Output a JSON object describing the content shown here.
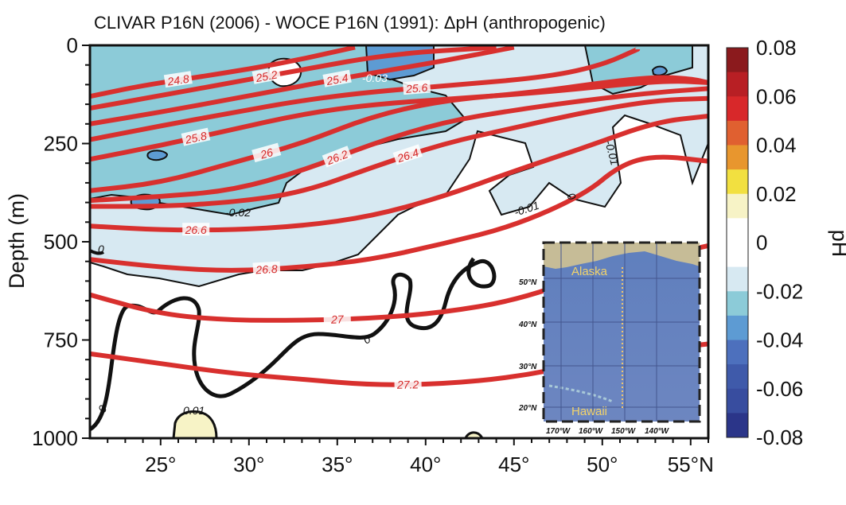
{
  "chart_data": {
    "type": "contour",
    "title": "CLIVAR P16N (2006) - WOCE P16N (1991): ΔpH (anthropogenic)",
    "xlabel": "",
    "ylabel": "Depth (m)",
    "xlim": [
      21,
      56
    ],
    "ylim": [
      0,
      1000
    ],
    "y_inverted": true,
    "x_ticks": [
      {
        "value": 25,
        "label": "25°"
      },
      {
        "value": 30,
        "label": "30°"
      },
      {
        "value": 35,
        "label": "35°"
      },
      {
        "value": 40,
        "label": "40°"
      },
      {
        "value": 45,
        "label": "45°"
      },
      {
        "value": 50,
        "label": "50°"
      },
      {
        "value": 55,
        "label": "55°N"
      }
    ],
    "y_ticks": [
      {
        "value": 0,
        "label": "0"
      },
      {
        "value": 250,
        "label": "250"
      },
      {
        "value": 500,
        "label": "500"
      },
      {
        "value": 750,
        "label": "750"
      },
      {
        "value": 1000,
        "label": "1000"
      }
    ],
    "colorbar": {
      "label": "pH",
      "tick_labels": [
        "0.08",
        "0.06",
        "0.04",
        "0.02",
        "0",
        "-0.02",
        "-0.04",
        "-0.06",
        "-0.08"
      ],
      "colors": [
        "#8b1a1d",
        "#b81f24",
        "#d8282a",
        "#e06030",
        "#e8962e",
        "#f2e040",
        "#f7f3c6",
        "#ffffff",
        "#ffffff",
        "#d7e9f2",
        "#8ccbd8",
        "#5d9bd3",
        "#4d70bd",
        "#3f5aaa",
        "#384d9f",
        "#2b3589"
      ]
    },
    "dph_contour_labels": [
      "-0.03",
      "-0.02",
      "-0.01",
      "-0.01",
      "0",
      "0",
      "0",
      "0",
      "0.01"
    ],
    "isopycnals": [
      {
        "label": "24.8",
        "points": [
          [
            21,
            130
          ],
          [
            24,
            102
          ],
          [
            28,
            75
          ],
          [
            32,
            45
          ],
          [
            36,
            5
          ]
        ]
      },
      {
        "label": "25.2",
        "points": [
          [
            21,
            160
          ],
          [
            25,
            128
          ],
          [
            29,
            95
          ],
          [
            33,
            62
          ],
          [
            38,
            22
          ],
          [
            44,
            5
          ]
        ]
      },
      {
        "label": "25.4",
        "points": [
          [
            21,
            200
          ],
          [
            25,
            170
          ],
          [
            29,
            137
          ],
          [
            33,
            103
          ],
          [
            37,
            70
          ],
          [
            41,
            40
          ],
          [
            45,
            5
          ]
        ]
      },
      {
        "label": "25.6",
        "points": [
          [
            21,
            240
          ],
          [
            25,
            205
          ],
          [
            29,
            172
          ],
          [
            33,
            140
          ],
          [
            37,
            118
          ],
          [
            42,
            100
          ],
          [
            47,
            80
          ],
          [
            50,
            50
          ],
          [
            52,
            10
          ]
        ]
      },
      {
        "label": "25.8",
        "points": [
          [
            21,
            290
          ],
          [
            25,
            255
          ],
          [
            29,
            215
          ],
          [
            33,
            175
          ],
          [
            37,
            150
          ],
          [
            42,
            135
          ],
          [
            47,
            118
          ],
          [
            51,
            100
          ],
          [
            54,
            90
          ],
          [
            56,
            95
          ]
        ]
      },
      {
        "label": "26",
        "points": [
          [
            21,
            370
          ],
          [
            25,
            350
          ],
          [
            29,
            300
          ],
          [
            33,
            250
          ],
          [
            37,
            180
          ],
          [
            41,
            140
          ],
          [
            46,
            120
          ],
          [
            50,
            95
          ],
          [
            53,
            80
          ],
          [
            55,
            85
          ],
          [
            56,
            95
          ]
        ]
      },
      {
        "label": "26.2",
        "points": [
          [
            21,
            395
          ],
          [
            25,
            385
          ],
          [
            29,
            370
          ],
          [
            33,
            320
          ],
          [
            37,
            250
          ],
          [
            41,
            195
          ],
          [
            45,
            165
          ],
          [
            49,
            140
          ],
          [
            53,
            120
          ],
          [
            56,
            110
          ]
        ]
      },
      {
        "label": "26.4",
        "points": [
          [
            21,
            410
          ],
          [
            25,
            410
          ],
          [
            29,
            400
          ],
          [
            33,
            375
          ],
          [
            37,
            310
          ],
          [
            41,
            250
          ],
          [
            45,
            210
          ],
          [
            49,
            170
          ],
          [
            53,
            140
          ],
          [
            56,
            135
          ]
        ]
      },
      {
        "label": "26.6",
        "points": [
          [
            21,
            460
          ],
          [
            25,
            470
          ],
          [
            29,
            470
          ],
          [
            33,
            460
          ],
          [
            37,
            435
          ],
          [
            41,
            385
          ],
          [
            45,
            320
          ],
          [
            49,
            260
          ],
          [
            53,
            195
          ],
          [
            56,
            180
          ]
        ]
      },
      {
        "label": "26.8",
        "points": [
          [
            21,
            545
          ],
          [
            25,
            565
          ],
          [
            29,
            575
          ],
          [
            33,
            565
          ],
          [
            37,
            545
          ],
          [
            41,
            505
          ],
          [
            45,
            460
          ],
          [
            49,
            380
          ],
          [
            51,
            305
          ],
          [
            53,
            280
          ],
          [
            56,
            295
          ]
        ]
      },
      {
        "label": "27",
        "points": [
          [
            21,
            635
          ],
          [
            25,
            685
          ],
          [
            29,
            700
          ],
          [
            33,
            700
          ],
          [
            37,
            695
          ],
          [
            41,
            680
          ],
          [
            45,
            650
          ],
          [
            49,
            590
          ],
          [
            53,
            540
          ],
          [
            56,
            510
          ]
        ]
      },
      {
        "label": "27.2",
        "points": [
          [
            21,
            785
          ],
          [
            25,
            810
          ],
          [
            29,
            835
          ],
          [
            33,
            850
          ],
          [
            37,
            865
          ],
          [
            41,
            862
          ],
          [
            45,
            845
          ],
          [
            49,
            810
          ],
          [
            53,
            775
          ],
          [
            56,
            760
          ]
        ]
      }
    ],
    "inset_map": {
      "lat_labels": [
        "50°N",
        "40°N",
        "30°N",
        "20°N"
      ],
      "lon_labels": [
        "170°W",
        "160°W",
        "150°W",
        "140°W"
      ],
      "places": [
        "Alaska",
        "Hawaii"
      ]
    },
    "grid": false,
    "legend": "none"
  }
}
